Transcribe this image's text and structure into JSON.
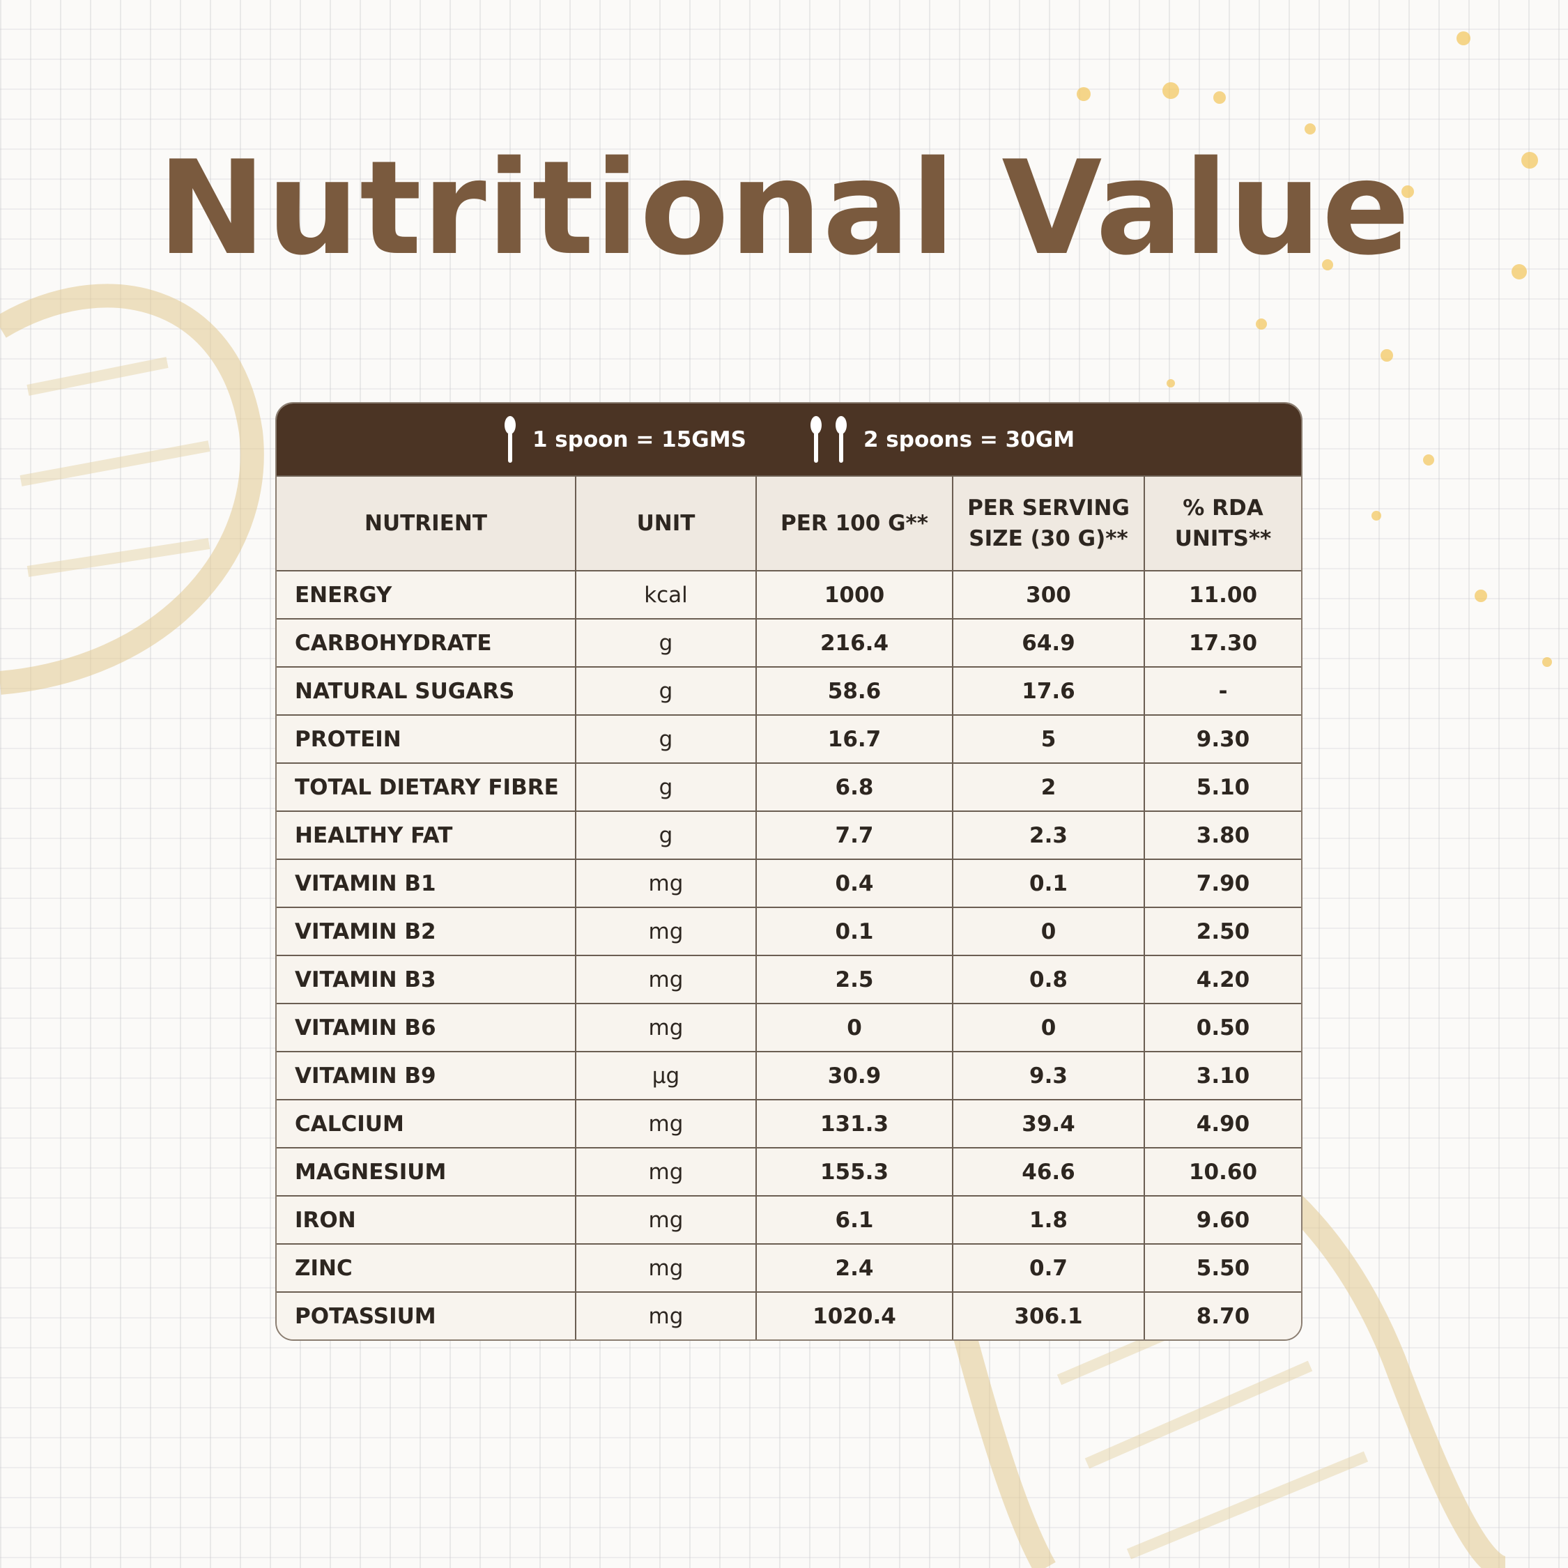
{
  "title": "Nutritional Value",
  "serving_bar": [
    "1 spoon = 15GMS",
    "2 spoons = 30GM"
  ],
  "table": {
    "columns": [
      "NUTRIENT",
      "UNIT",
      "PER 100 G**",
      "PER SERVING SIZE (30 G)**",
      "% RDA UNITS**"
    ],
    "rows": [
      [
        "ENERGY",
        "kcal",
        "1000",
        "300",
        "11.00"
      ],
      [
        "CARBOHYDRATE",
        "g",
        "216.4",
        "64.9",
        "17.30"
      ],
      [
        "NATURAL SUGARS",
        "g",
        "58.6",
        "17.6",
        "-"
      ],
      [
        "PROTEIN",
        "g",
        "16.7",
        "5",
        "9.30"
      ],
      [
        "TOTAL DIETARY FIBRE",
        "g",
        "6.8",
        "2",
        "5.10"
      ],
      [
        "HEALTHY FAT",
        "g",
        "7.7",
        "2.3",
        "3.80"
      ],
      [
        "VITAMIN B1",
        "mg",
        "0.4",
        "0.1",
        "7.90"
      ],
      [
        "VITAMIN B2",
        "mg",
        "0.1",
        "0",
        "2.50"
      ],
      [
        "VITAMIN B3",
        "mg",
        "2.5",
        "0.8",
        "4.20"
      ],
      [
        "VITAMIN B6",
        "mg",
        "0",
        "0",
        "0.50"
      ],
      [
        "VITAMIN B9",
        "µg",
        "30.9",
        "9.3",
        "3.10"
      ],
      [
        "CALCIUM",
        "mg",
        "131.3",
        "39.4",
        "4.90"
      ],
      [
        "MAGNESIUM",
        "mg",
        "155.3",
        "46.6",
        "10.60"
      ],
      [
        "IRON",
        "mg",
        "6.1",
        "1.8",
        "9.60"
      ],
      [
        "ZINC",
        "mg",
        "2.4",
        "0.7",
        "5.50"
      ],
      [
        "POTASSIUM",
        "mg",
        "1020.4",
        "306.1",
        "8.70"
      ]
    ]
  }
}
